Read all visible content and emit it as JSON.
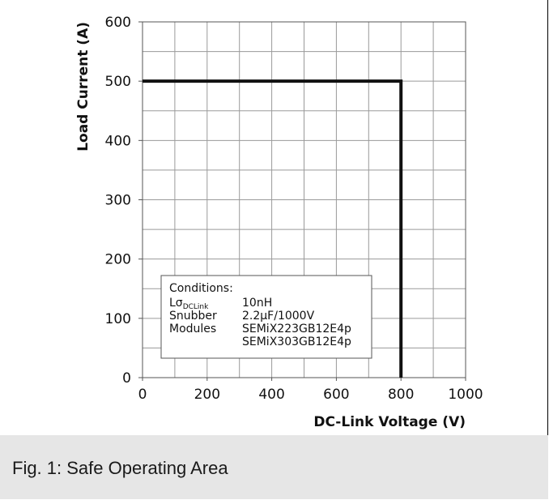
{
  "chart_data": {
    "type": "line",
    "xlabel": "DC-Link Voltage (V)",
    "ylabel": "Load Current (A)",
    "xlim": [
      0,
      1000
    ],
    "ylim": [
      0,
      600
    ],
    "x_ticks": [
      0,
      200,
      400,
      600,
      800,
      1000
    ],
    "y_ticks": [
      0,
      100,
      200,
      300,
      400,
      500,
      600
    ],
    "x_minor_step": 100,
    "y_minor_step": 50,
    "grid": true,
    "series": [
      {
        "points": [
          [
            0,
            500
          ],
          [
            800,
            500
          ],
          [
            800,
            0
          ]
        ],
        "color": "#111111"
      }
    ],
    "conditions": {
      "heading": "Conditions:",
      "rows": [
        {
          "label": "Lσ",
          "label_sub": "DCLink",
          "value": "10nH"
        },
        {
          "label": "Snubber",
          "value": "2.2µF/1000V"
        },
        {
          "label": "Modules",
          "value": "SEMiX223GB12E4p"
        },
        {
          "label": "",
          "value": "SEMiX303GB12E4p"
        }
      ]
    }
  },
  "caption": "Fig. 1: Safe Operating Area"
}
